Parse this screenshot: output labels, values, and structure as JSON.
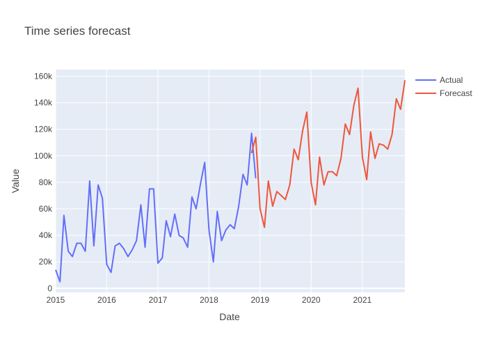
{
  "colors": {
    "plot_bg": "#E5ECF6",
    "grid": "#ffffff",
    "text": "#444444"
  },
  "chart_data": {
    "type": "line",
    "title": "Time series forecast",
    "xlabel": "Date",
    "ylabel": "Value",
    "xlim": [
      "2015-01-01",
      "2021-11-01"
    ],
    "ylim": [
      -3000,
      165000
    ],
    "x_ticks": [
      {
        "date": "2015-01-01",
        "label": "2015"
      },
      {
        "date": "2016-01-01",
        "label": "2016"
      },
      {
        "date": "2017-01-01",
        "label": "2017"
      },
      {
        "date": "2018-01-01",
        "label": "2018"
      },
      {
        "date": "2019-01-01",
        "label": "2019"
      },
      {
        "date": "2020-01-01",
        "label": "2020"
      },
      {
        "date": "2021-01-01",
        "label": "2021"
      }
    ],
    "y_ticks": [
      {
        "value": 0,
        "label": "0"
      },
      {
        "value": 20000,
        "label": "20k"
      },
      {
        "value": 40000,
        "label": "40k"
      },
      {
        "value": 60000,
        "label": "60k"
      },
      {
        "value": 80000,
        "label": "80k"
      },
      {
        "value": 100000,
        "label": "100k"
      },
      {
        "value": 120000,
        "label": "120k"
      },
      {
        "value": 140000,
        "label": "140k"
      },
      {
        "value": 160000,
        "label": "160k"
      }
    ],
    "grid": true,
    "legend_position": "top-right, outside plot",
    "series": [
      {
        "name": "Actual",
        "color": "#636EFA",
        "x": [
          "2015-01-01",
          "2015-02-01",
          "2015-03-01",
          "2015-04-01",
          "2015-05-01",
          "2015-06-01",
          "2015-07-01",
          "2015-08-01",
          "2015-09-01",
          "2015-10-01",
          "2015-11-01",
          "2015-12-01",
          "2016-01-01",
          "2016-02-01",
          "2016-03-01",
          "2016-04-01",
          "2016-05-01",
          "2016-06-01",
          "2016-07-01",
          "2016-08-01",
          "2016-09-01",
          "2016-10-01",
          "2016-11-01",
          "2016-12-01",
          "2017-01-01",
          "2017-02-01",
          "2017-03-01",
          "2017-04-01",
          "2017-05-01",
          "2017-06-01",
          "2017-07-01",
          "2017-08-01",
          "2017-09-01",
          "2017-10-01",
          "2017-11-01",
          "2017-12-01",
          "2018-01-01",
          "2018-02-01",
          "2018-03-01",
          "2018-04-01",
          "2018-05-01",
          "2018-06-01",
          "2018-07-01",
          "2018-08-01",
          "2018-09-01",
          "2018-10-01",
          "2018-11-01",
          "2018-12-01"
        ],
        "y": [
          14000,
          5000,
          55000,
          28000,
          24000,
          34000,
          34000,
          28000,
          81000,
          32000,
          78000,
          68000,
          18000,
          12000,
          32000,
          34000,
          30000,
          24000,
          29000,
          36000,
          63000,
          31000,
          75000,
          75000,
          19000,
          23000,
          51000,
          39000,
          56000,
          40000,
          38000,
          31000,
          69000,
          60000,
          79000,
          95000,
          44000,
          20000,
          58000,
          36000,
          44000,
          48000,
          45000,
          62000,
          86000,
          78000,
          117000,
          83000
        ]
      },
      {
        "name": "Forecast",
        "color": "#EF553B",
        "x": [
          "2018-11-01",
          "2018-12-01",
          "2019-01-01",
          "2019-02-01",
          "2019-03-01",
          "2019-04-01",
          "2019-05-01",
          "2019-06-01",
          "2019-07-01",
          "2019-08-01",
          "2019-09-01",
          "2019-10-01",
          "2019-11-01",
          "2019-12-01",
          "2020-01-01",
          "2020-02-01",
          "2020-03-01",
          "2020-04-01",
          "2020-05-01",
          "2020-06-01",
          "2020-07-01",
          "2020-08-01",
          "2020-09-01",
          "2020-10-01",
          "2020-11-01",
          "2020-12-01",
          "2021-01-01",
          "2021-02-01",
          "2021-03-01",
          "2021-04-01",
          "2021-05-01",
          "2021-06-01",
          "2021-07-01",
          "2021-08-01",
          "2021-09-01",
          "2021-10-01",
          "2021-11-01"
        ],
        "y": [
          102000,
          114000,
          60000,
          46000,
          81000,
          62000,
          73000,
          70000,
          67000,
          78000,
          105000,
          97000,
          119000,
          133000,
          80000,
          63000,
          99000,
          78000,
          88000,
          88000,
          85000,
          98000,
          124000,
          116000,
          138000,
          151000,
          99000,
          82000,
          118000,
          98000,
          109000,
          108000,
          105000,
          116000,
          143000,
          135000,
          157000
        ]
      }
    ]
  }
}
